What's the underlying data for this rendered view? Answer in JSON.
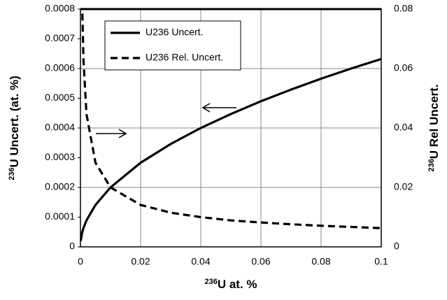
{
  "chart_data": {
    "type": "line",
    "x_label": {
      "sup": "236",
      "text": "U  at. %"
    },
    "y_label": {
      "sup": "236",
      "text": "U Uncert. (at. %)"
    },
    "y2_label": {
      "sup": "236",
      "text": "U Rel Uncert."
    },
    "x": [
      0.0001,
      0.0005,
      0.00065,
      0.001,
      0.002,
      0.005,
      0.01,
      0.02,
      0.03,
      0.04,
      0.05,
      0.06,
      0.07,
      0.08,
      0.09,
      0.1
    ],
    "series": [
      {
        "name": "U236 Uncert.",
        "color": "#000000",
        "dash": false,
        "values": [
          2e-05,
          4.5e-05,
          5.1e-05,
          6.3e-05,
          8.9e-05,
          0.000141,
          0.0002,
          0.000283,
          0.000346,
          0.0004,
          0.000447,
          0.00049,
          0.000529,
          0.000566,
          0.0006,
          0.000632
        ]
      },
      {
        "name": "U236 Rel. Uncert.",
        "color": "#000000",
        "dash": true,
        "axis": "y2",
        "values": [
          null,
          null,
          0.0785,
          0.063,
          0.0447,
          0.0283,
          0.02,
          0.0141,
          0.0115,
          0.01,
          0.0089,
          0.0082,
          0.0076,
          0.0071,
          0.0067,
          0.0063
        ]
      }
    ],
    "xlim": [
      0,
      0.1
    ],
    "xticks": [
      0,
      0.02,
      0.04,
      0.06,
      0.08,
      0.1
    ],
    "ylim": [
      0,
      0.0008
    ],
    "yticks": [
      0,
      0.0001,
      0.0002,
      0.0003,
      0.0004,
      0.0005,
      0.0006,
      0.0007,
      0.0008
    ],
    "y2lim": [
      0,
      0.08
    ],
    "y2ticks": [
      0,
      0.02,
      0.04,
      0.06,
      0.08
    ],
    "grid": true,
    "legend": "upper left"
  }
}
